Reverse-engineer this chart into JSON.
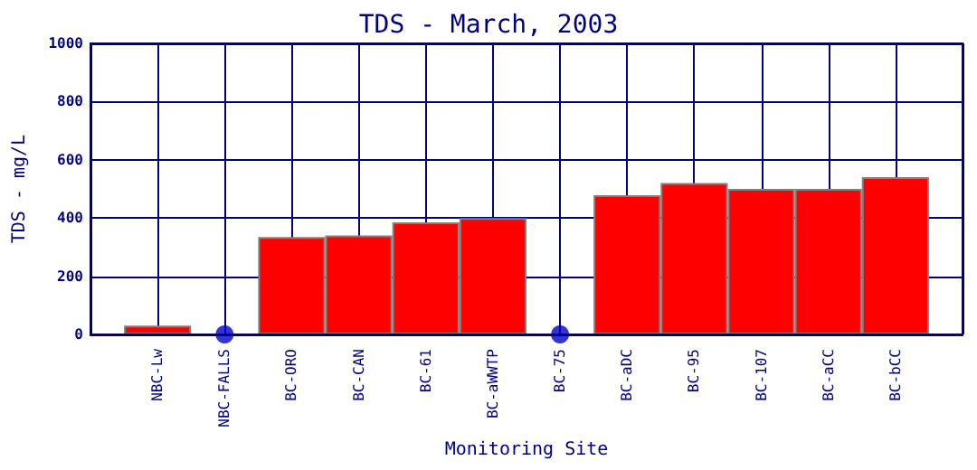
{
  "chart_data": {
    "type": "bar",
    "title": "TDS - March, 2003",
    "xlabel": "Monitoring Site",
    "ylabel": "TDS - mg/L",
    "categories": [
      "NBC-Lw",
      "NBC-FALLS",
      "BC-ORO",
      "BC-CAN",
      "BC-61",
      "BC-aWWTP",
      "BC-75",
      "BC-aDC",
      "BC-95",
      "BC-107",
      "BC-aCC",
      "BC-bCC"
    ],
    "series": [
      {
        "color": "#ff0000",
        "values": [
          30,
          null,
          335,
          340,
          385,
          400,
          null,
          478,
          520,
          500,
          500,
          540
        ]
      },
      {
        "type": "scatter",
        "color": "#0000cc",
        "x": [
          "NBC-FALLS",
          "BC-75"
        ],
        "values": [
          0,
          0
        ]
      }
    ],
    "ylim": [
      0,
      1000
    ],
    "yticks": [
      0,
      200,
      400,
      600,
      800,
      1000
    ],
    "grid": true
  }
}
